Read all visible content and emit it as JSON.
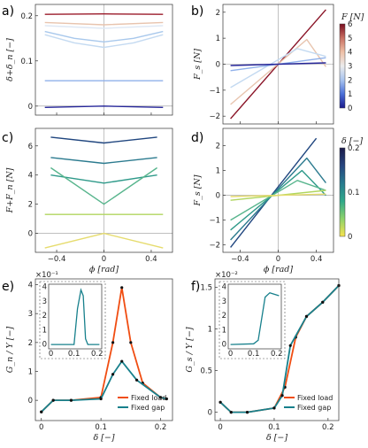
{
  "panel_labels": [
    "a)",
    "b)",
    "c)",
    "d)",
    "e)",
    "f)"
  ],
  "chart_data": [
    {
      "panel": "a)",
      "type": "line",
      "ylabel": "δ+δ_n [−]",
      "xlim": [
        -0.58,
        0.58
      ],
      "ylim": [
        -0.02,
        0.225
      ],
      "yticks": [
        0,
        0.1,
        0.2
      ],
      "ytick_labels": [
        "0",
        "0.1",
        "0.2"
      ],
      "xticks": [
        -0.4,
        0,
        0.4
      ],
      "xtick_labels": [
        "",
        "",
        ""
      ],
      "series": [
        {
          "color": "#27279a",
          "values": [
            [
              -0.5,
              -0.003
            ],
            [
              0,
              0.0
            ],
            [
              0.5,
              -0.003
            ]
          ]
        },
        {
          "color": "#8fb0ea",
          "values": [
            [
              -0.5,
              0.056
            ],
            [
              0.5,
              0.056
            ]
          ]
        },
        {
          "color": "#c4daf1",
          "values": [
            [
              -0.5,
              0.158
            ],
            [
              -0.25,
              0.14
            ],
            [
              0,
              0.13
            ],
            [
              0.25,
              0.14
            ],
            [
              0.5,
              0.158
            ]
          ]
        },
        {
          "color": "#a8c8ec",
          "values": [
            [
              -0.5,
              0.165
            ],
            [
              -0.25,
              0.15
            ],
            [
              0,
              0.142
            ],
            [
              0.25,
              0.15
            ],
            [
              0.5,
              0.165
            ]
          ]
        },
        {
          "color": "#dfe8f4",
          "values": [
            [
              -0.5,
              0.178
            ],
            [
              0,
              0.172
            ],
            [
              0.5,
              0.178
            ]
          ]
        },
        {
          "color": "#e8c4ae",
          "values": [
            [
              -0.5,
              0.185
            ],
            [
              0,
              0.18
            ],
            [
              0.5,
              0.185
            ]
          ]
        },
        {
          "color": "#9b1b2a",
          "values": [
            [
              -0.5,
              0.203
            ],
            [
              0,
              0.204
            ],
            [
              0.5,
              0.203
            ]
          ]
        }
      ]
    },
    {
      "panel": "b)",
      "type": "line",
      "ylabel": "F_s [N]",
      "xlim": [
        -0.58,
        0.58
      ],
      "ylim": [
        -2.3,
        2.3
      ],
      "yticks": [
        -2,
        -1,
        0,
        1,
        2
      ],
      "ytick_labels": [
        "−2",
        "−1",
        "0",
        "1",
        "2"
      ],
      "xticks": [
        -0.4,
        0,
        0.4
      ],
      "xtick_labels": [
        "",
        "",
        ""
      ],
      "colorbar": {
        "label": "F [N]",
        "ticks": [
          "0",
          "1",
          "2",
          "3",
          "4",
          "5",
          "6"
        ],
        "colors": [
          "#1a1a8c",
          "#4a6fd8",
          "#a9c4ef",
          "#ececec",
          "#efc0a6",
          "#c86f62",
          "#7a0d1f"
        ]
      },
      "series": [
        {
          "color": "#8a1326",
          "values": [
            [
              -0.5,
              -2.1
            ],
            [
              0.5,
              2.1
            ]
          ]
        },
        {
          "color": "#e8c4ae",
          "values": [
            [
              -0.5,
              -1.55
            ],
            [
              0.3,
              0.95
            ],
            [
              0.5,
              -0.1
            ]
          ]
        },
        {
          "color": "#c4daf1",
          "values": [
            [
              -0.5,
              -0.9
            ],
            [
              0.2,
              0.6
            ],
            [
              0.5,
              0.3
            ]
          ]
        },
        {
          "color": "#8fb0ea",
          "values": [
            [
              -0.5,
              -0.25
            ],
            [
              0.5,
              0.25
            ]
          ]
        },
        {
          "color": "#27279a",
          "values": [
            [
              -0.5,
              -0.05
            ],
            [
              0.5,
              0.05
            ]
          ]
        }
      ]
    },
    {
      "panel": "c)",
      "type": "line",
      "ylabel": "F+F_n [N]",
      "xlabel": "ϕ [rad]",
      "xlim": [
        -0.58,
        0.58
      ],
      "ylim": [
        -1.3,
        7.2
      ],
      "yticks": [
        0,
        2,
        4,
        6
      ],
      "ytick_labels": [
        "0",
        "2",
        "4",
        "6"
      ],
      "xticks": [
        -0.4,
        0,
        0.4
      ],
      "xtick_labels": [
        "−0.4",
        "0",
        "0.4"
      ],
      "series": [
        {
          "color": "#20467f",
          "values": [
            [
              -0.45,
              6.6
            ],
            [
              0,
              6.2
            ],
            [
              0.45,
              6.6
            ]
          ]
        },
        {
          "color": "#2c7b8f",
          "values": [
            [
              -0.45,
              5.2
            ],
            [
              0,
              4.8
            ],
            [
              0.45,
              5.2
            ]
          ]
        },
        {
          "color": "#2f9a8a",
          "values": [
            [
              -0.45,
              4.0
            ],
            [
              0,
              3.45
            ],
            [
              0.45,
              4.0
            ]
          ]
        },
        {
          "color": "#58b58d",
          "values": [
            [
              -0.45,
              4.5
            ],
            [
              0,
              2.0
            ],
            [
              0.45,
              4.5
            ]
          ]
        },
        {
          "color": "#b0d65f",
          "values": [
            [
              -0.5,
              1.3
            ],
            [
              0.5,
              1.3
            ]
          ]
        },
        {
          "color": "#e6dc6e",
          "values": [
            [
              -0.5,
              -1.0
            ],
            [
              0,
              0.0
            ],
            [
              0.5,
              -1.0
            ]
          ]
        }
      ]
    },
    {
      "panel": "d)",
      "type": "line",
      "ylabel": "F_s [N]",
      "xlabel": "ϕ [rad]",
      "xlim": [
        -0.58,
        0.58
      ],
      "ylim": [
        -2.3,
        2.7
      ],
      "yticks": [
        -2,
        -1,
        0,
        1,
        2
      ],
      "ytick_labels": [
        "−2",
        "−1",
        "0",
        "1",
        "2"
      ],
      "xticks": [
        -0.4,
        0,
        0.4
      ],
      "xtick_labels": [
        "−0.4",
        "0",
        "0.4"
      ],
      "colorbar": {
        "label": "δ [−]",
        "ticks": [
          "0",
          "0.1",
          "0.2"
        ],
        "colors": [
          "#f7e34f",
          "#8cd26b",
          "#2fa88a",
          "#277a8e",
          "#26457f",
          "#1b1b4a"
        ]
      },
      "series": [
        {
          "color": "#20467f",
          "values": [
            [
              -0.5,
              -2.1
            ],
            [
              0.4,
              2.3
            ]
          ]
        },
        {
          "color": "#2c7b8f",
          "values": [
            [
              -0.5,
              -1.8
            ],
            [
              0.3,
              1.5
            ],
            [
              0.5,
              0.5
            ]
          ]
        },
        {
          "color": "#2f9a8a",
          "values": [
            [
              -0.5,
              -1.4
            ],
            [
              0.25,
              1.0
            ],
            [
              0.5,
              0.0
            ]
          ]
        },
        {
          "color": "#58b58d",
          "values": [
            [
              -0.5,
              -1.0
            ],
            [
              0.2,
              0.6
            ],
            [
              0.5,
              0.2
            ]
          ]
        },
        {
          "color": "#b0d65f",
          "values": [
            [
              -0.5,
              -0.2
            ],
            [
              0.5,
              0.2
            ]
          ]
        },
        {
          "color": "#e6dc6e",
          "values": [
            [
              -0.5,
              -0.05
            ],
            [
              0.5,
              0.05
            ]
          ]
        }
      ]
    },
    {
      "panel": "e)",
      "type": "line",
      "ylabel": "G_n / Y [−]",
      "xlabel": "δ [−]",
      "scale_label": "×10⁻¹",
      "xlim": [
        -0.01,
        0.22
      ],
      "ylim": [
        -0.7,
        4.2
      ],
      "yticks": [
        0,
        1,
        2,
        3,
        4
      ],
      "ytick_labels": [
        "0",
        "1",
        "2",
        "3",
        "4"
      ],
      "xticks": [
        0,
        0.1,
        0.2
      ],
      "xtick_labels": [
        "0",
        "0.1",
        "0.2"
      ],
      "legend": [
        "Fixed load",
        "Fixed gap"
      ],
      "series": [
        {
          "name": "Fixed load",
          "color": "#f04d12",
          "values": [
            [
              0,
              -0.4
            ],
            [
              0.02,
              0.0
            ],
            [
              0.05,
              0.0
            ],
            [
              0.1,
              0.1
            ],
            [
              0.12,
              2.0
            ],
            [
              0.135,
              3.9
            ],
            [
              0.15,
              2.0
            ],
            [
              0.17,
              0.6
            ],
            [
              0.2,
              0.1
            ],
            [
              0.21,
              0.05
            ]
          ]
        },
        {
          "name": "Fixed gap",
          "color": "#17808c",
          "values": [
            [
              0,
              -0.4
            ],
            [
              0.02,
              0.0
            ],
            [
              0.05,
              0.0
            ],
            [
              0.1,
              0.05
            ],
            [
              0.12,
              0.9
            ],
            [
              0.135,
              1.35
            ],
            [
              0.16,
              0.7
            ],
            [
              0.2,
              0.1
            ],
            [
              0.21,
              0.05
            ]
          ]
        }
      ],
      "inset": {
        "xlim": [
          -0.01,
          0.22
        ],
        "ylim": [
          -0.3,
          4.2
        ],
        "yticks": [
          "0",
          "1",
          "2",
          "3",
          "4"
        ],
        "xticks": [
          "0",
          "0.1",
          "0.2"
        ],
        "values": [
          [
            0,
            0.0
          ],
          [
            0.1,
            0.0
          ],
          [
            0.115,
            2.5
          ],
          [
            0.13,
            3.8
          ],
          [
            0.14,
            3.4
          ],
          [
            0.15,
            0.4
          ],
          [
            0.16,
            0.0
          ],
          [
            0.21,
            0.0
          ]
        ]
      }
    },
    {
      "panel": "f)",
      "type": "line",
      "ylabel": "G_s / Y [−]",
      "xlabel": "δ [−]",
      "scale_label": "×10⁻²",
      "xlim": [
        -0.01,
        0.22
      ],
      "ylim": [
        -0.1,
        1.6
      ],
      "yticks": [
        0,
        0.5,
        1,
        1.5
      ],
      "ytick_labels": [
        "0",
        "0.5",
        "1",
        "1.5"
      ],
      "xticks": [
        0,
        0.1,
        0.2
      ],
      "xtick_labels": [
        "0",
        "0.1",
        "0.2"
      ],
      "legend": [
        "Fixed load",
        "Fixed gap"
      ],
      "series": [
        {
          "name": "Fixed load",
          "color": "#f04d12",
          "values": [
            [
              0,
              0.12
            ],
            [
              0.02,
              0.0
            ],
            [
              0.05,
              0.0
            ],
            [
              0.1,
              0.05
            ],
            [
              0.12,
              0.3
            ],
            [
              0.14,
              0.9
            ],
            [
              0.16,
              1.15
            ],
            [
              0.19,
              1.32
            ],
            [
              0.22,
              1.52
            ]
          ]
        },
        {
          "name": "Fixed gap",
          "color": "#17808c",
          "values": [
            [
              0,
              0.12
            ],
            [
              0.02,
              0.0
            ],
            [
              0.05,
              0.0
            ],
            [
              0.1,
              0.05
            ],
            [
              0.115,
              0.2
            ],
            [
              0.13,
              0.8
            ],
            [
              0.16,
              1.15
            ],
            [
              0.19,
              1.32
            ],
            [
              0.22,
              1.52
            ]
          ]
        }
      ],
      "inset": {
        "xlim": [
          -0.01,
          0.22
        ],
        "ylim": [
          -0.3,
          4.2
        ],
        "yticks": [
          "0",
          "1",
          "2",
          "3",
          "4"
        ],
        "xticks": [
          "0",
          "0.1",
          "0.2"
        ],
        "values": [
          [
            0,
            0.0
          ],
          [
            0.1,
            0.05
          ],
          [
            0.12,
            0.3
          ],
          [
            0.15,
            3.3
          ],
          [
            0.17,
            3.6
          ],
          [
            0.21,
            3.4
          ]
        ]
      }
    }
  ]
}
